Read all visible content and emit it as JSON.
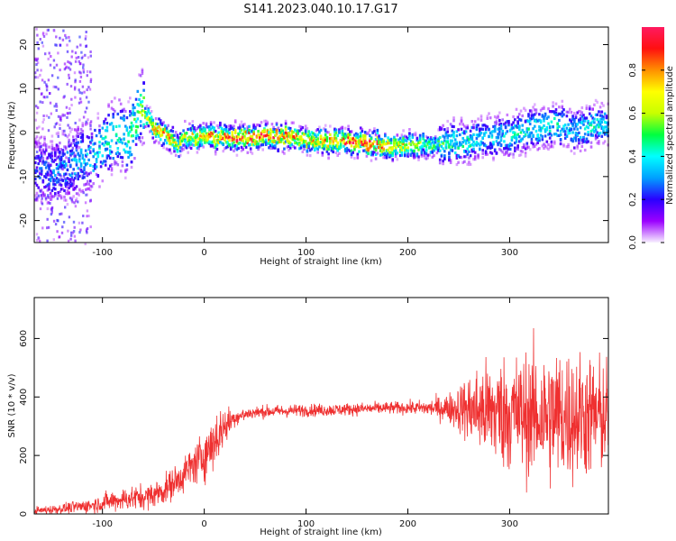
{
  "title": "S141.2023.040.10.17.G17",
  "colors": {
    "snr_line": "#ef3030",
    "colormap": [
      "#f8f0ff",
      "#9b00ff",
      "#2a00ff",
      "#00a0ff",
      "#00ffff",
      "#00ff40",
      "#c8ff00",
      "#ffff00",
      "#ff9000",
      "#ff1010",
      "#ff1a60"
    ]
  },
  "chart_data": [
    {
      "type": "heatmap",
      "xlabel": "Height of straight line (km)",
      "ylabel": "Frequency (Hz)",
      "xlim": [
        -167,
        397
      ],
      "ylim": [
        -25,
        24
      ],
      "xticks": [
        -100,
        0,
        100,
        200,
        300
      ],
      "yticks": [
        -20,
        -10,
        0,
        10,
        20
      ],
      "colorbar": {
        "label": "Normalized spectral amplitude",
        "range": [
          0,
          1
        ],
        "ticks": [
          "0.0",
          "0.2",
          "0.4",
          "0.6",
          "0.8"
        ],
        "tick_values": [
          0.0,
          0.2,
          0.4,
          0.6,
          0.8
        ]
      },
      "ridge": {
        "x": [
          -167,
          -150,
          -130,
          -110,
          -95,
          -85,
          -75,
          -68,
          -62,
          -57,
          -50,
          -42,
          -35,
          -30,
          -26,
          -22,
          -15,
          0,
          20,
          40,
          60,
          80,
          100,
          120,
          140,
          160,
          180,
          200,
          220,
          240,
          260,
          275,
          290,
          300,
          315,
          330,
          345,
          360,
          375,
          385,
          397
        ],
        "freq_hz": [
          -8,
          -9,
          -7,
          -5,
          -2,
          0,
          -2,
          3,
          6,
          3,
          1,
          0,
          -1,
          -2,
          -3,
          -1,
          -1,
          -1,
          -1,
          -1,
          -1,
          -1,
          -1.5,
          -2,
          -2,
          -2.5,
          -3,
          -3,
          -3,
          -2.5,
          -2,
          -1,
          -1,
          -0.5,
          0.5,
          1,
          2,
          0.5,
          1,
          2,
          1.5
        ],
        "peak_amplitude": [
          0.25,
          0.3,
          0.35,
          0.4,
          0.45,
          0.45,
          0.5,
          0.55,
          0.6,
          0.7,
          0.85,
          0.9,
          0.85,
          0.7,
          0.7,
          0.75,
          0.75,
          0.8,
          0.9,
          1.0,
          0.95,
          0.9,
          0.8,
          0.85,
          0.95,
          1.0,
          0.85,
          0.7,
          0.55,
          0.5,
          0.45,
          0.4,
          0.4,
          0.45,
          0.45,
          0.45,
          0.45,
          0.4,
          0.45,
          0.45,
          0.4
        ]
      }
    },
    {
      "type": "line",
      "xlabel": "Height of straight line (km)",
      "ylabel": "SNR (10 * v/v)",
      "xlim": [
        -167,
        397
      ],
      "ylim": [
        0,
        740
      ],
      "xticks": [
        -100,
        0,
        100,
        200,
        300
      ],
      "yticks": [
        0,
        200,
        400,
        600
      ],
      "series": [
        {
          "trend_x": [
            -167,
            -140,
            -110,
            -90,
            -70,
            -55,
            -40,
            -25,
            -10,
            0,
            10,
            20,
            30,
            45,
            60,
            80,
            100,
            120,
            140,
            160,
            180,
            200,
            220,
            240,
            255,
            270,
            285,
            300,
            315,
            330,
            345,
            360,
            375,
            390,
            397
          ],
          "trend_snr": [
            10,
            18,
            30,
            45,
            55,
            60,
            80,
            120,
            170,
            200,
            250,
            300,
            330,
            345,
            350,
            352,
            355,
            355,
            358,
            360,
            362,
            363,
            362,
            362,
            360,
            355,
            350,
            345,
            340,
            335,
            335,
            335,
            335,
            335,
            335
          ],
          "spread": [
            10,
            12,
            18,
            25,
            30,
            30,
            35,
            40,
            50,
            60,
            70,
            50,
            20,
            15,
            15,
            15,
            15,
            15,
            15,
            15,
            15,
            15,
            20,
            35,
            70,
            110,
            130,
            140,
            150,
            160,
            170,
            160,
            150,
            140,
            140
          ]
        }
      ]
    }
  ]
}
